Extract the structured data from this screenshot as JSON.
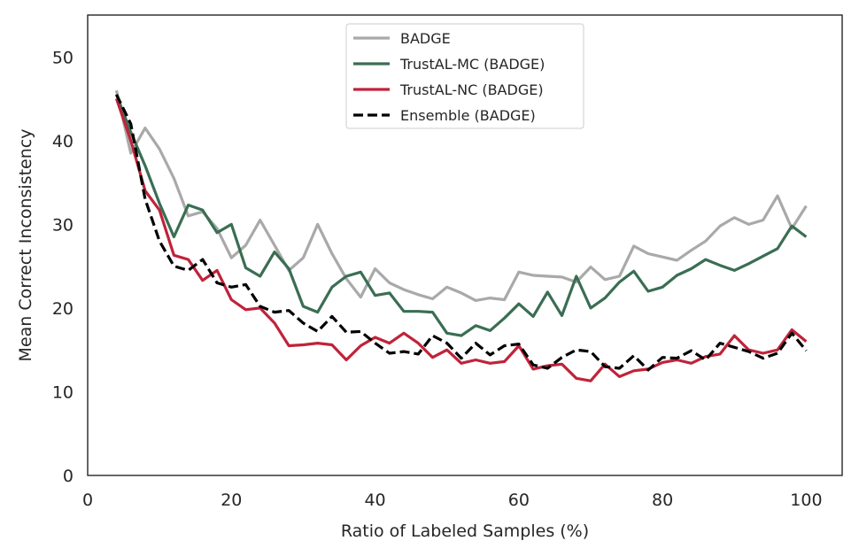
{
  "chart_data": {
    "type": "line",
    "xlabel": "Ratio of Labeled Samples (%)",
    "ylabel": "Mean Correct Inconsistency",
    "xlim": [
      0,
      105
    ],
    "ylim": [
      0,
      55
    ],
    "xticks": [
      0,
      20,
      40,
      60,
      80,
      100
    ],
    "yticks": [
      0,
      10,
      20,
      30,
      40,
      50
    ],
    "grid": false,
    "legend_position": "top-center",
    "x": [
      4,
      6,
      8,
      10,
      12,
      14,
      16,
      18,
      20,
      22,
      24,
      26,
      28,
      30,
      32,
      34,
      36,
      38,
      40,
      42,
      44,
      46,
      48,
      50,
      52,
      54,
      56,
      58,
      60,
      62,
      64,
      66,
      68,
      70,
      72,
      74,
      76,
      78,
      80,
      82,
      84,
      86,
      88,
      90,
      92,
      94,
      96,
      98,
      100
    ],
    "series": [
      {
        "name": "BADGE",
        "color": "#a9a9a9",
        "dash": "solid",
        "values": [
          46,
          38.5,
          41.5,
          39,
          35.5,
          31,
          31.5,
          29.5,
          26,
          27.5,
          30.5,
          27.5,
          24.5,
          26,
          30,
          26.5,
          23.5,
          21.3,
          24.7,
          23,
          22.2,
          21.6,
          21.1,
          22.5,
          21.8,
          20.9,
          21.2,
          21,
          24.3,
          23.9,
          23.8,
          23.7,
          23.1,
          24.9,
          23.4,
          23.8,
          27.4,
          26.5,
          26.1,
          25.7,
          26.9,
          28,
          29.8,
          30.8,
          30,
          30.5,
          33.4,
          29.5,
          32.2
        ]
      },
      {
        "name": "TrustAL-MC (BADGE)",
        "color": "#3a6e53",
        "dash": "solid",
        "values": [
          45.5,
          41,
          37,
          32.5,
          28.5,
          32.3,
          31.7,
          29,
          30,
          24.8,
          23.8,
          26.7,
          24.7,
          20.2,
          19.5,
          22.5,
          23.8,
          24.3,
          21.5,
          21.8,
          19.6,
          19.6,
          19.5,
          17,
          16.7,
          17.9,
          17.3,
          18.8,
          20.5,
          19,
          21.9,
          19.1,
          23.8,
          20,
          21.2,
          23.1,
          24.4,
          22,
          22.5,
          23.9,
          24.7,
          25.8,
          25.1,
          24.5,
          25.3,
          26.2,
          27.1,
          29.8,
          28.5
        ]
      },
      {
        "name": "TrustAL-NC (BADGE)",
        "color": "#c0233a",
        "dash": "solid",
        "values": [
          45,
          40,
          34,
          31.7,
          26.3,
          25.8,
          23.3,
          24.5,
          21,
          19.8,
          20,
          18.2,
          15.5,
          15.6,
          15.8,
          15.6,
          13.8,
          15.5,
          16.5,
          15.8,
          17,
          15.8,
          14.1,
          15,
          13.4,
          13.8,
          13.4,
          13.6,
          15.5,
          12.7,
          13.1,
          13.3,
          11.6,
          11.3,
          13.3,
          11.8,
          12.5,
          12.7,
          13.5,
          13.8,
          13.4,
          14.2,
          14.5,
          16.7,
          15,
          14.6,
          15,
          17.4,
          16
        ]
      },
      {
        "name": "Ensemble  (BADGE)",
        "color": "#000000",
        "dash": "dashed",
        "values": [
          45.5,
          42,
          33,
          28,
          25,
          24.5,
          25.8,
          23,
          22.5,
          22.8,
          20.2,
          19.5,
          19.7,
          18.2,
          17.2,
          19,
          17.1,
          17.2,
          15.8,
          14.6,
          14.8,
          14.5,
          16.7,
          15.8,
          14,
          15.8,
          14.4,
          15.5,
          15.7,
          13.2,
          12.8,
          14.1,
          15,
          14.8,
          13,
          12.8,
          14.3,
          12.6,
          14.1,
          14,
          14.9,
          13.8,
          15.8,
          15.3,
          14.8,
          14,
          14.6,
          17,
          14.9
        ]
      }
    ]
  }
}
